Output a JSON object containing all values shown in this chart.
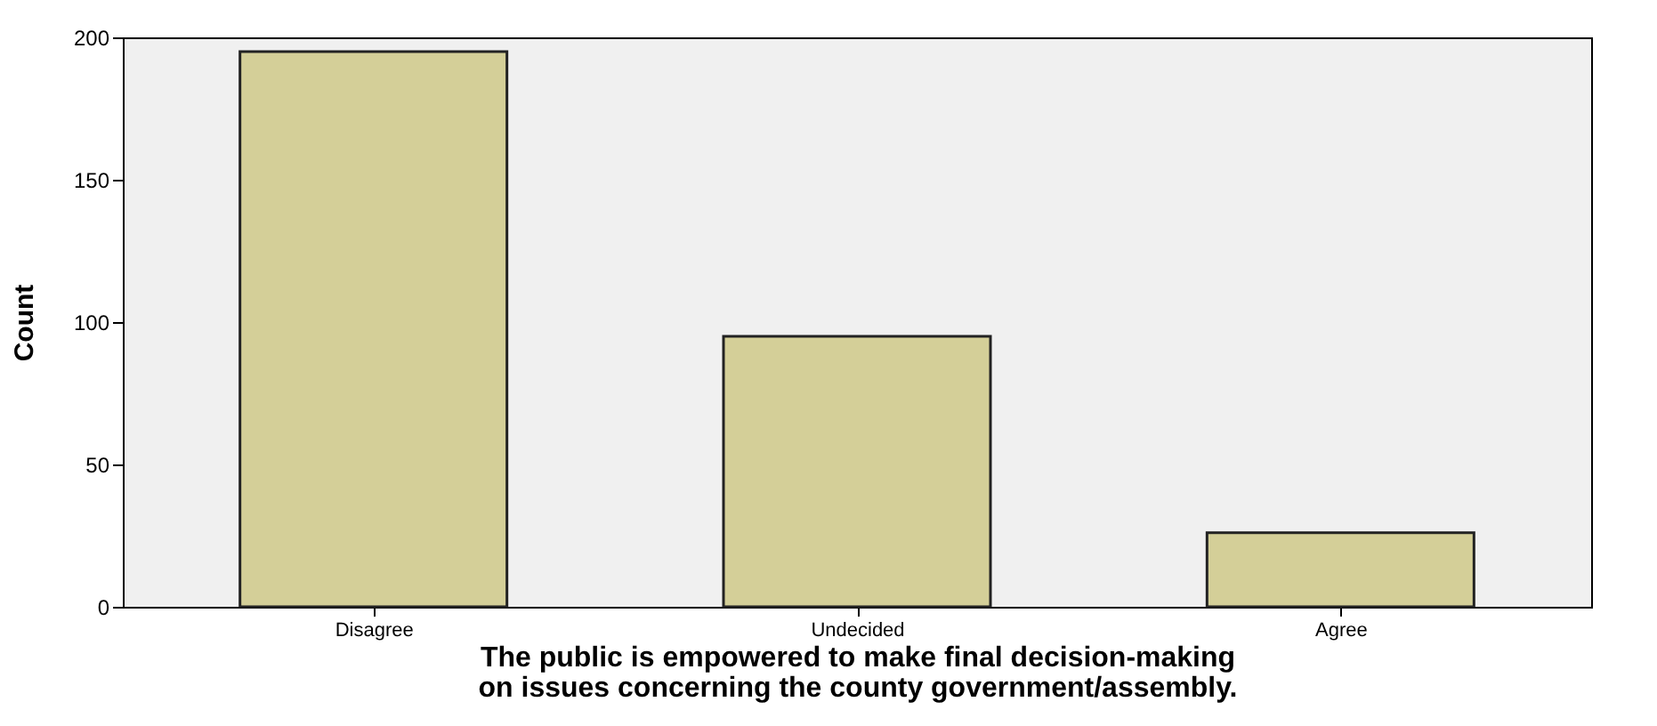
{
  "chart_data": {
    "type": "bar",
    "categories": [
      "Disagree",
      "Undecided",
      "Agree"
    ],
    "values": [
      195,
      95,
      26
    ],
    "color": "#d4cf98",
    "xlabel": "The public is empowered to make final decision-making on issues concerning the county government/assembly.",
    "ylabel": "Count",
    "ylim": [
      0,
      200
    ],
    "yticks": [
      0,
      50,
      100,
      150,
      200
    ],
    "grid": false
  }
}
